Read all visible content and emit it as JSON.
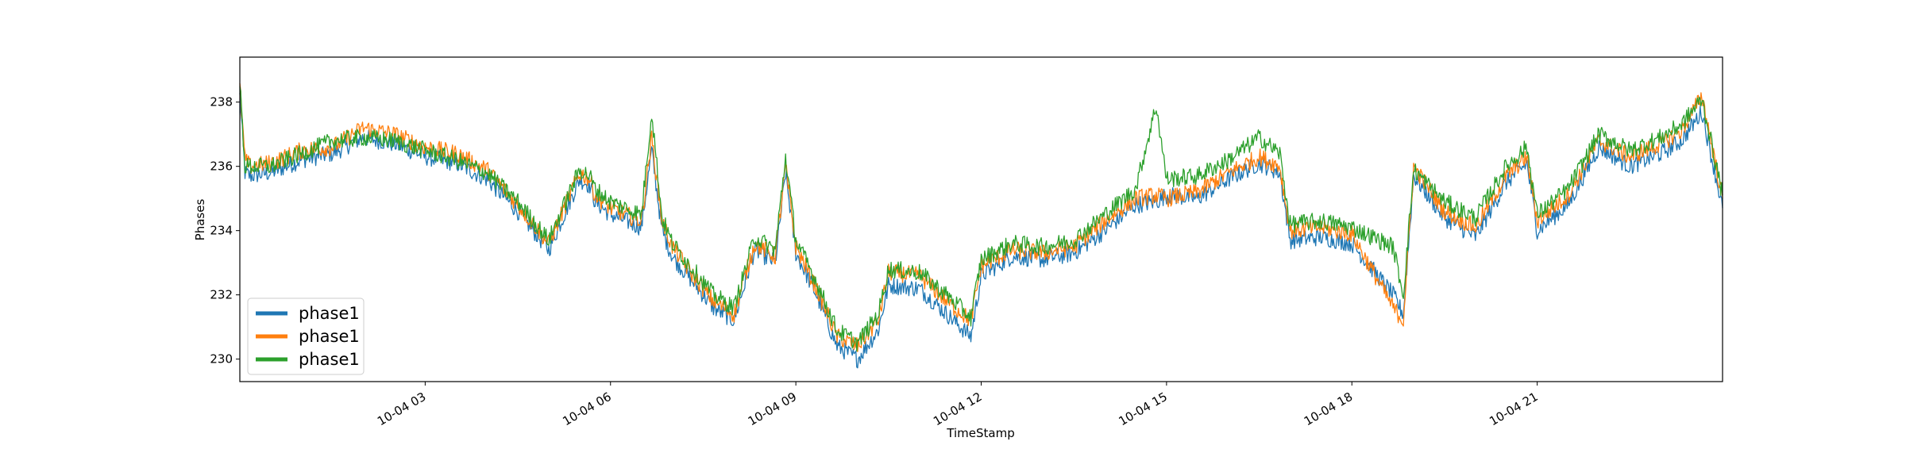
{
  "chart_data": {
    "type": "line",
    "title": "",
    "xlabel": "TimeStamp",
    "ylabel": "Phases",
    "xlim": [
      "10-04 00:00",
      "10-04 24:00"
    ],
    "ylim": [
      229.3,
      239.4
    ],
    "x_ticks": [
      {
        "value": "10-04 03:00",
        "label": "10-04 03"
      },
      {
        "value": "10-04 06:00",
        "label": "10-04 06"
      },
      {
        "value": "10-04 09:00",
        "label": "10-04 09"
      },
      {
        "value": "10-04 12:00",
        "label": "10-04 12"
      },
      {
        "value": "10-04 15:00",
        "label": "10-04 15"
      },
      {
        "value": "10-04 18:00",
        "label": "10-04 18"
      },
      {
        "value": "10-04 21:00",
        "label": "10-04 21"
      }
    ],
    "y_ticks": [
      230,
      232,
      234,
      236,
      238
    ],
    "grid": false,
    "legend": {
      "position": "lower-left",
      "entries": [
        "phase1",
        "phase1",
        "phase1"
      ]
    },
    "x": [
      "10-04 00:00",
      "10-04 00:05",
      "10-04 00:10",
      "10-04 00:30",
      "10-04 01:00",
      "10-04 01:30",
      "10-04 02:00",
      "10-04 02:30",
      "10-04 03:00",
      "10-04 03:30",
      "10-04 04:00",
      "10-04 04:30",
      "10-04 05:00",
      "10-04 05:30",
      "10-04 05:40",
      "10-04 05:45",
      "10-04 06:00",
      "10-04 06:30",
      "10-04 06:40",
      "10-04 06:50",
      "10-04 07:00",
      "10-04 07:20",
      "10-04 07:40",
      "10-04 08:00",
      "10-04 08:20",
      "10-04 08:40",
      "10-04 08:50",
      "10-04 09:00",
      "10-04 09:20",
      "10-04 09:40",
      "10-04 10:00",
      "10-04 10:20",
      "10-04 10:30",
      "10-04 11:00",
      "10-04 11:30",
      "10-04 11:50",
      "10-04 12:00",
      "10-04 12:30",
      "10-04 13:00",
      "10-04 13:30",
      "10-04 14:00",
      "10-04 14:30",
      "10-04 14:50",
      "10-04 15:00",
      "10-04 15:30",
      "10-04 16:00",
      "10-04 16:30",
      "10-04 16:50",
      "10-04 17:00",
      "10-04 17:30",
      "10-04 18:00",
      "10-04 18:40",
      "10-04 18:50",
      "10-04 19:00",
      "10-04 19:30",
      "10-04 20:00",
      "10-04 20:30",
      "10-04 20:50",
      "10-04 21:00",
      "10-04 21:30",
      "10-04 22:00",
      "10-04 22:30",
      "10-04 23:00",
      "10-04 23:20",
      "10-04 23:40",
      "10-04 24:00"
    ],
    "series": [
      {
        "name": "phase1",
        "color": "#1f77b4",
        "values": [
          238.2,
          235.8,
          235.7,
          235.8,
          236.2,
          236.4,
          236.9,
          236.7,
          236.3,
          236.1,
          235.6,
          234.6,
          233.4,
          235.6,
          235.4,
          234.9,
          234.5,
          234.1,
          236.5,
          234.0,
          233.2,
          232.4,
          231.6,
          231.2,
          233.4,
          233.0,
          235.8,
          233.3,
          232.0,
          230.4,
          230.0,
          230.9,
          232.3,
          232.2,
          231.3,
          230.7,
          232.6,
          233.2,
          233.1,
          233.3,
          234.0,
          234.8,
          234.9,
          235.1,
          235.0,
          235.6,
          236.1,
          235.8,
          233.7,
          233.8,
          233.6,
          232.0,
          231.4,
          235.7,
          234.4,
          233.8,
          235.5,
          236.1,
          234.0,
          234.8,
          236.6,
          236.0,
          236.4,
          236.8,
          237.7,
          234.7
        ]
      },
      {
        "name": "phase1",
        "color": "#ff7f0e",
        "values": [
          238.5,
          236.2,
          236.0,
          236.1,
          236.5,
          236.6,
          237.2,
          237.0,
          236.6,
          236.4,
          235.9,
          234.8,
          233.6,
          235.8,
          235.6,
          235.1,
          234.7,
          234.3,
          236.9,
          234.3,
          233.5,
          232.6,
          231.8,
          231.4,
          233.6,
          233.2,
          236.0,
          233.5,
          232.2,
          230.7,
          230.4,
          231.2,
          232.7,
          232.6,
          231.7,
          231.2,
          232.9,
          233.4,
          233.3,
          233.5,
          234.3,
          235.0,
          235.1,
          235.0,
          235.2,
          235.8,
          236.3,
          236.0,
          234.0,
          234.1,
          233.9,
          231.6,
          231.2,
          236.0,
          234.6,
          234.1,
          235.7,
          236.3,
          234.3,
          235.1,
          236.8,
          236.3,
          236.7,
          237.1,
          238.2,
          235.0
        ]
      },
      {
        "name": "phase1",
        "color": "#2ca02c",
        "values": [
          238.6,
          236.0,
          236.0,
          236.0,
          236.4,
          236.8,
          236.9,
          236.8,
          236.5,
          236.2,
          235.8,
          234.9,
          233.7,
          235.9,
          235.7,
          235.3,
          234.9,
          234.5,
          237.7,
          234.4,
          233.6,
          232.8,
          232.0,
          231.6,
          233.8,
          233.4,
          236.3,
          233.7,
          232.4,
          230.9,
          230.5,
          231.4,
          232.8,
          232.7,
          231.9,
          231.3,
          233.1,
          233.6,
          233.5,
          233.7,
          234.5,
          235.3,
          237.9,
          235.6,
          235.7,
          236.2,
          236.9,
          236.4,
          234.2,
          234.3,
          234.1,
          233.5,
          232.0,
          235.9,
          234.9,
          234.4,
          236.0,
          236.6,
          234.5,
          235.3,
          237.0,
          236.5,
          236.9,
          237.3,
          238.1,
          235.1
        ]
      }
    ]
  }
}
